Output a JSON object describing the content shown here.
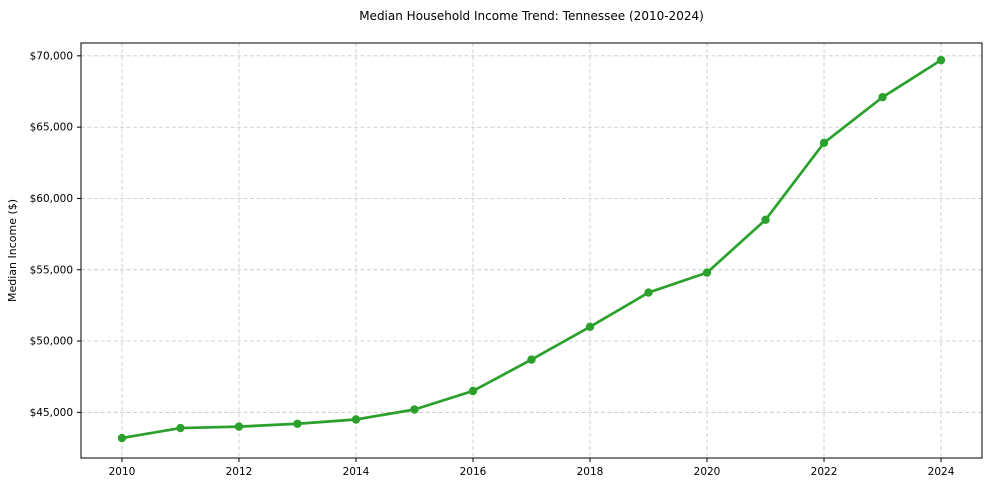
{
  "chart_data": {
    "type": "line",
    "title": "Median Household Income Trend: Tennessee (2010-2024)",
    "xlabel": "",
    "ylabel": "Median Income ($)",
    "series_name": "Median Household Income",
    "x": [
      2010,
      2011,
      2012,
      2013,
      2014,
      2015,
      2016,
      2017,
      2018,
      2019,
      2020,
      2021,
      2022,
      2023,
      2024
    ],
    "values": [
      43200,
      43900,
      44000,
      44200,
      44500,
      45200,
      46500,
      48700,
      51000,
      53400,
      54800,
      58500,
      63900,
      67100,
      69700
    ],
    "xlim": [
      2009.3,
      2024.7
    ],
    "ylim": [
      41800,
      70900
    ],
    "xticks": [
      2010,
      2012,
      2014,
      2016,
      2018,
      2020,
      2022,
      2024
    ],
    "xtick_labels": [
      "2010",
      "2012",
      "2014",
      "2016",
      "2018",
      "2020",
      "2022",
      "2024"
    ],
    "yticks": [
      45000,
      50000,
      55000,
      60000,
      65000,
      70000
    ],
    "ytick_labels": [
      "$45,000",
      "$50,000",
      "$55,000",
      "$60,000",
      "$65,000",
      "$70,000"
    ],
    "grid": true,
    "grid_style": "dashed",
    "legend_position": "none",
    "line_color": "#2ca02c",
    "marker": "circle",
    "grid_color": "#cccccc",
    "spine_color": "#000000",
    "tick_color": "#000000",
    "text_color": "#000000",
    "background_color": "#ffffff"
  }
}
